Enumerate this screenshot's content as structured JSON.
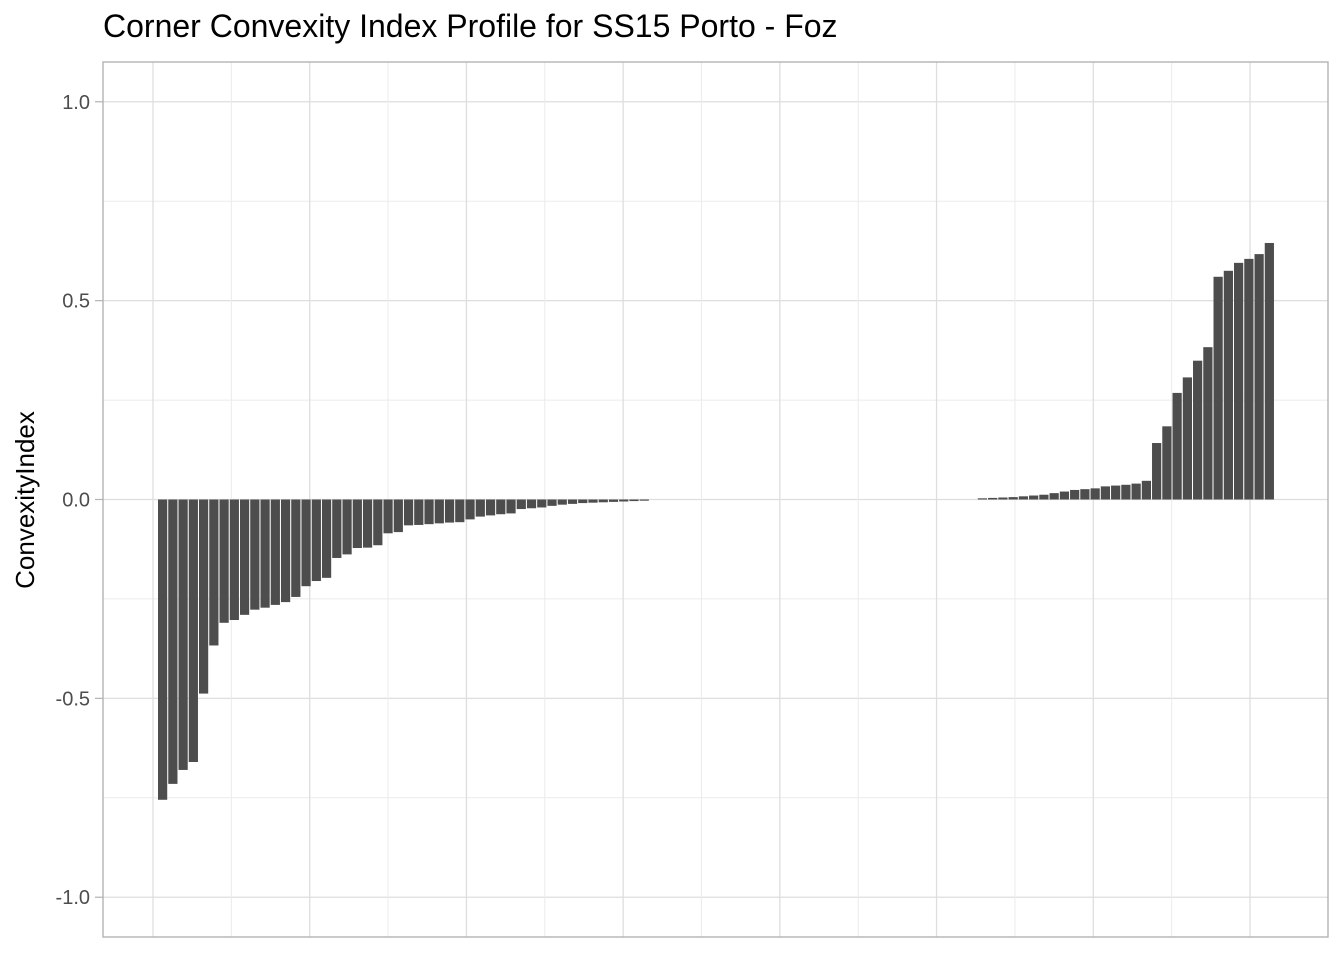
{
  "chart_data": {
    "type": "bar",
    "title": "Corner Convexity Index Profile for SS15 Porto - Foz",
    "xlabel": "",
    "ylabel": "ConvexityIndex",
    "ylim": [
      -1.1,
      1.1
    ],
    "y_ticks": [
      "-1.0",
      "-0.5",
      "0.0",
      "0.5",
      "1.0"
    ],
    "y_tick_values": [
      -1.0,
      -0.5,
      0.0,
      0.5,
      1.0
    ],
    "x_tick_labels": [],
    "grid": true,
    "bar_color": "#4d4d4d",
    "values": [
      -0.755,
      -0.715,
      -0.68,
      -0.66,
      -0.488,
      -0.367,
      -0.31,
      -0.303,
      -0.29,
      -0.277,
      -0.272,
      -0.265,
      -0.258,
      -0.245,
      -0.218,
      -0.205,
      -0.197,
      -0.147,
      -0.138,
      -0.122,
      -0.121,
      -0.115,
      -0.085,
      -0.082,
      -0.065,
      -0.064,
      -0.062,
      -0.06,
      -0.058,
      -0.057,
      -0.05,
      -0.043,
      -0.04,
      -0.037,
      -0.035,
      -0.024,
      -0.022,
      -0.02,
      -0.016,
      -0.013,
      -0.011,
      -0.009,
      -0.008,
      -0.007,
      -0.006,
      -0.005,
      -0.004,
      -0.003,
      0,
      0,
      0,
      0,
      0,
      0,
      0,
      0,
      0,
      0,
      0,
      0,
      0,
      0,
      0,
      0,
      0,
      0,
      0,
      0,
      0,
      0,
      0,
      0,
      0,
      0,
      0,
      0,
      0,
      0,
      0,
      0,
      0.003,
      0.004,
      0.005,
      0.006,
      0.008,
      0.01,
      0.012,
      0.016,
      0.02,
      0.024,
      0.026,
      0.028,
      0.033,
      0.035,
      0.037,
      0.04,
      0.047,
      0.142,
      0.184,
      0.268,
      0.307,
      0.349,
      0.383,
      0.56,
      0.575,
      0.595,
      0.605,
      0.617,
      0.645
    ]
  }
}
